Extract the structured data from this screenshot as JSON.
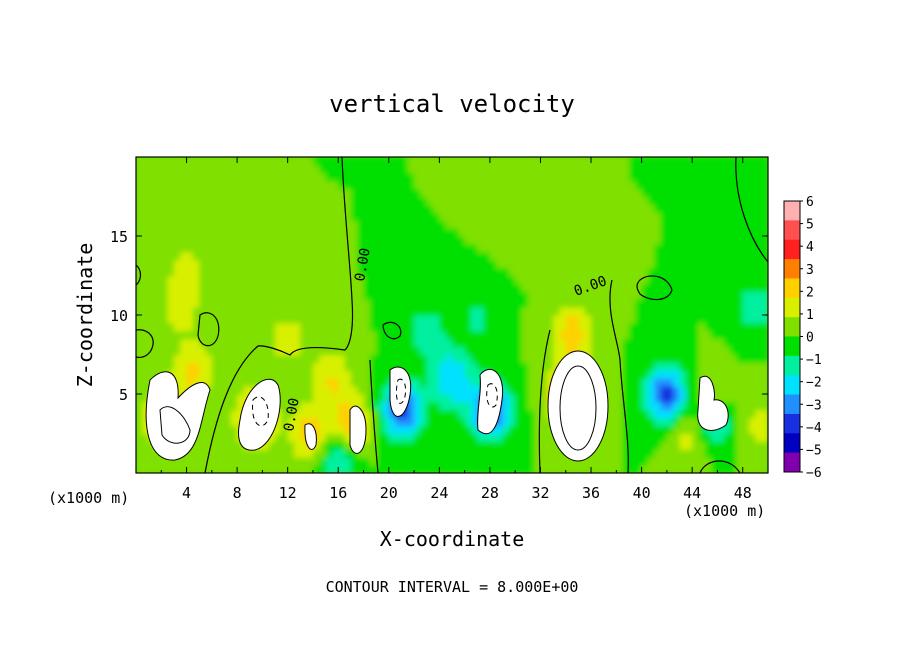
{
  "chart_data": {
    "type": "heatmap",
    "title": "vertical velocity",
    "xlabel": "X-coordinate",
    "ylabel": "Z-coordinate",
    "x_unit": "(x1000 m)",
    "z_unit": "(x1000 m)",
    "xlim": [
      0,
      50
    ],
    "ylim": [
      0,
      20
    ],
    "x_ticks": [
      "4",
      "8",
      "12",
      "16",
      "20",
      "24",
      "28",
      "32",
      "36",
      "40",
      "44",
      "48"
    ],
    "y_ticks": [
      "5",
      "10",
      "15"
    ],
    "colorbar": {
      "levels": [
        "6",
        "5",
        "4",
        "3",
        "2",
        "1",
        "0",
        "-1",
        "-2",
        "-3",
        "-4",
        "-5",
        "-6"
      ],
      "colors": [
        "#ffb0b0",
        "#ff5050",
        "#ff2020",
        "#ff8000",
        "#ffd000",
        "#d8f000",
        "#80e000",
        "#00e000",
        "#00f0a0",
        "#00e0ff",
        "#2090ff",
        "#1830e0",
        "#0000c0",
        "#8000b0"
      ]
    },
    "contour_label": "0.00",
    "contour_interval_text": "CONTOUR INTERVAL = 8.000E+00",
    "features": [
      {
        "x": 2.5,
        "z": 3.5,
        "w": 4
      },
      {
        "x": 4.5,
        "z": 6.5,
        "w": 2.2
      },
      {
        "x": 3.5,
        "z": 10.5,
        "w": 1.6
      },
      {
        "x": 4,
        "z": 13,
        "w": 1.2
      },
      {
        "x": 9.5,
        "z": 3.5,
        "w": 3.5
      },
      {
        "x": 13.8,
        "z": 2.5,
        "w": 2.8
      },
      {
        "x": 17,
        "z": 3,
        "w": 3
      },
      {
        "x": 15.5,
        "z": 6,
        "w": 2
      },
      {
        "x": 12,
        "z": 8.5,
        "w": 1.5
      },
      {
        "x": 16,
        "z": 1,
        "w": -2.5
      },
      {
        "x": 21,
        "z": 4,
        "w": -4.5
      },
      {
        "x": 28,
        "z": 4,
        "w": -4.5
      },
      {
        "x": 25,
        "z": 6,
        "w": -3
      },
      {
        "x": 23,
        "z": 9,
        "w": -1.5
      },
      {
        "x": 27,
        "z": 10,
        "w": -1.2
      },
      {
        "x": 34.5,
        "z": 5,
        "w": 7
      },
      {
        "x": 34.5,
        "z": 9,
        "w": 2.5
      },
      {
        "x": 42,
        "z": 5,
        "w": -4.5
      },
      {
        "x": 45.5,
        "z": 3.5,
        "w": -4
      },
      {
        "x": 44,
        "z": 2.5,
        "w": 2
      },
      {
        "x": 45.5,
        "z": 4.5,
        "w": 2.5
      },
      {
        "x": 49.5,
        "z": 3,
        "w": 1.5
      },
      {
        "x": 49,
        "z": 10.5,
        "w": -1.5
      },
      {
        "x": 30,
        "z": 16,
        "w": 0.4
      },
      {
        "x": 5,
        "z": 17,
        "w": 0.6
      }
    ]
  }
}
